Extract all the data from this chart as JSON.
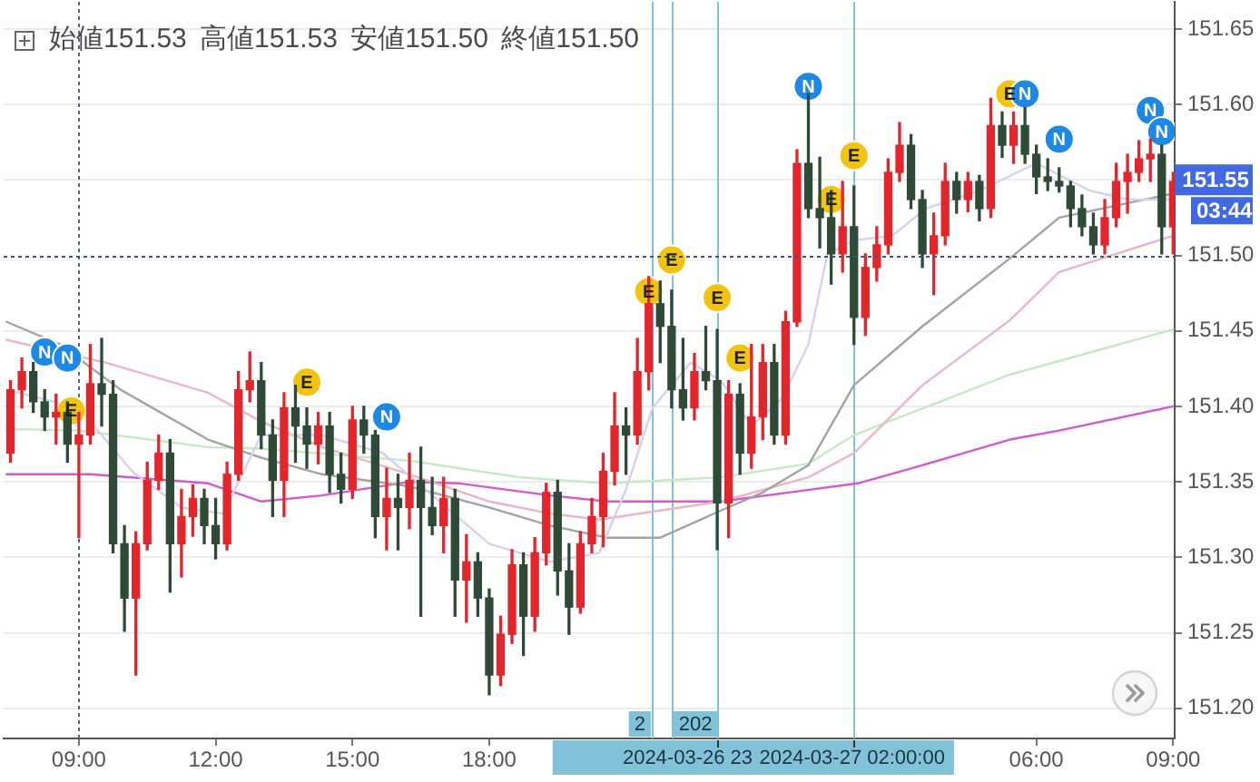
{
  "chart_data": {
    "type": "candlestick",
    "title": "始値151.53 高値151.53 安値151.50 終値151.50",
    "x": [
      "2024-03-26T07:30",
      "2024-03-26T07:45",
      "2024-03-26T08:00",
      "2024-03-26T08:15",
      "2024-03-26T08:30",
      "2024-03-26T08:45",
      "2024-03-26T09:00",
      "2024-03-26T09:15",
      "2024-03-26T09:30",
      "2024-03-26T09:45",
      "2024-03-26T10:00",
      "2024-03-26T10:15",
      "2024-03-26T10:30",
      "2024-03-26T10:45",
      "2024-03-26T11:00",
      "2024-03-26T11:15",
      "2024-03-26T11:30",
      "2024-03-26T11:45",
      "2024-03-26T12:00",
      "2024-03-26T12:15",
      "2024-03-26T12:30",
      "2024-03-26T12:45",
      "2024-03-26T13:00",
      "2024-03-26T13:15",
      "2024-03-26T13:30",
      "2024-03-26T13:45",
      "2024-03-26T14:00",
      "2024-03-26T14:15",
      "2024-03-26T14:30",
      "2024-03-26T14:45",
      "2024-03-26T15:00",
      "2024-03-26T15:15",
      "2024-03-26T15:30",
      "2024-03-26T15:45",
      "2024-03-26T16:00",
      "2024-03-26T16:15",
      "2024-03-26T16:30",
      "2024-03-26T16:45",
      "2024-03-26T17:00",
      "2024-03-26T17:15",
      "2024-03-26T17:30",
      "2024-03-26T17:45",
      "2024-03-26T18:00",
      "2024-03-26T18:15",
      "2024-03-26T18:30",
      "2024-03-26T18:45",
      "2024-03-26T19:00",
      "2024-03-26T19:15",
      "2024-03-26T19:30",
      "2024-03-26T19:45",
      "2024-03-26T20:00",
      "2024-03-26T20:15",
      "2024-03-26T20:30",
      "2024-03-26T20:45",
      "2024-03-26T21:00",
      "2024-03-26T21:15",
      "2024-03-26T21:30",
      "2024-03-26T21:45",
      "2024-03-26T22:00",
      "2024-03-26T22:15",
      "2024-03-26T22:30",
      "2024-03-26T22:45",
      "2024-03-26T23:00",
      "2024-03-26T23:15",
      "2024-03-26T23:30",
      "2024-03-26T23:45",
      "2024-03-27T00:00",
      "2024-03-27T00:15",
      "2024-03-27T00:30",
      "2024-03-27T00:45",
      "2024-03-27T01:00",
      "2024-03-27T01:15",
      "2024-03-27T01:30",
      "2024-03-27T01:45",
      "2024-03-27T02:00",
      "2024-03-27T02:15",
      "2024-03-27T02:30",
      "2024-03-27T02:45",
      "2024-03-27T03:00",
      "2024-03-27T03:15",
      "2024-03-27T03:30",
      "2024-03-27T03:45",
      "2024-03-27T04:00",
      "2024-03-27T04:15",
      "2024-03-27T04:30",
      "2024-03-27T04:45",
      "2024-03-27T05:00",
      "2024-03-27T05:15",
      "2024-03-27T05:30",
      "2024-03-27T05:45",
      "2024-03-27T06:00",
      "2024-03-27T06:15",
      "2024-03-27T06:30",
      "2024-03-27T06:45",
      "2024-03-27T07:00",
      "2024-03-27T07:15",
      "2024-03-27T07:30",
      "2024-03-27T07:45",
      "2024-03-27T08:00",
      "2024-03-27T08:15",
      "2024-03-27T08:30",
      "2024-03-27T08:45",
      "2024-03-27T09:00"
    ],
    "ohlc": [
      [
        151.369,
        151.417,
        151.363,
        151.411
      ],
      [
        151.411,
        151.432,
        151.399,
        151.423
      ],
      [
        151.423,
        151.429,
        151.396,
        151.403
      ],
      [
        151.403,
        151.411,
        151.384,
        151.393
      ],
      [
        151.393,
        151.408,
        151.375,
        151.396
      ],
      [
        151.396,
        151.403,
        151.363,
        151.375
      ],
      [
        151.375,
        151.396,
        151.313,
        151.381
      ],
      [
        151.381,
        151.441,
        151.375,
        151.415
      ],
      [
        151.415,
        151.445,
        151.387,
        151.408
      ],
      [
        151.408,
        151.417,
        151.303,
        151.309
      ],
      [
        151.309,
        151.321,
        151.251,
        151.273
      ],
      [
        151.273,
        151.317,
        151.222,
        151.309
      ],
      [
        151.309,
        151.363,
        151.305,
        151.351
      ],
      [
        151.351,
        151.381,
        151.345,
        151.369
      ],
      [
        151.369,
        151.378,
        151.277,
        151.309
      ],
      [
        151.309,
        151.345,
        151.287,
        151.327
      ],
      [
        151.327,
        151.348,
        151.314,
        151.339
      ],
      [
        151.339,
        151.345,
        151.309,
        151.321
      ],
      [
        151.321,
        151.339,
        151.299,
        151.309
      ],
      [
        151.309,
        151.363,
        151.305,
        151.355
      ],
      [
        151.355,
        151.423,
        151.351,
        151.411
      ],
      [
        151.411,
        151.436,
        151.403,
        151.417
      ],
      [
        151.417,
        151.429,
        151.372,
        151.381
      ],
      [
        151.381,
        151.391,
        151.327,
        151.351
      ],
      [
        151.351,
        151.409,
        151.327,
        151.399
      ],
      [
        151.399,
        151.414,
        151.363,
        151.387
      ],
      [
        151.387,
        151.399,
        151.359,
        151.375
      ],
      [
        151.375,
        151.396,
        151.362,
        151.387
      ],
      [
        151.387,
        151.396,
        151.343,
        151.355
      ],
      [
        151.355,
        151.369,
        151.336,
        151.345
      ],
      [
        151.345,
        151.4,
        151.339,
        151.391
      ],
      [
        151.391,
        151.4,
        151.369,
        151.381
      ],
      [
        151.381,
        151.384,
        151.313,
        151.327
      ],
      [
        151.327,
        151.359,
        151.305,
        151.339
      ],
      [
        151.339,
        151.355,
        151.305,
        151.333
      ],
      [
        151.333,
        151.369,
        151.319,
        151.351
      ],
      [
        151.351,
        151.373,
        151.261,
        151.333
      ],
      [
        151.333,
        151.353,
        151.315,
        151.321
      ],
      [
        151.321,
        151.353,
        151.303,
        151.339
      ],
      [
        151.339,
        151.345,
        151.261,
        151.285
      ],
      [
        151.285,
        151.315,
        151.257,
        151.297
      ],
      [
        151.297,
        151.303,
        151.261,
        151.273
      ],
      [
        151.273,
        151.279,
        151.209,
        151.222
      ],
      [
        151.222,
        151.261,
        151.215,
        151.249
      ],
      [
        151.249,
        151.305,
        151.243,
        151.295
      ],
      [
        151.295,
        151.303,
        151.235,
        151.261
      ],
      [
        151.261,
        151.313,
        151.251,
        151.303
      ],
      [
        151.303,
        151.349,
        151.295,
        151.343
      ],
      [
        151.343,
        151.351,
        151.275,
        151.291
      ],
      [
        151.291,
        151.309,
        151.249,
        151.267
      ],
      [
        151.267,
        151.317,
        151.263,
        151.309
      ],
      [
        151.309,
        151.339,
        151.303,
        151.327
      ],
      [
        151.327,
        151.369,
        151.307,
        151.357
      ],
      [
        151.357,
        151.409,
        151.348,
        151.387
      ],
      [
        151.387,
        151.399,
        151.355,
        151.381
      ],
      [
        151.381,
        151.445,
        151.375,
        151.423
      ],
      [
        151.423,
        151.486,
        151.411,
        151.468
      ],
      [
        151.468,
        151.483,
        151.429,
        151.453
      ],
      [
        151.453,
        151.477,
        151.399,
        151.411
      ],
      [
        151.411,
        151.445,
        151.391,
        151.399
      ],
      [
        151.399,
        151.435,
        151.391,
        151.423
      ],
      [
        151.423,
        151.453,
        151.411,
        151.417
      ],
      [
        151.417,
        151.451,
        151.305,
        151.336
      ],
      [
        151.336,
        151.417,
        151.313,
        151.408
      ],
      [
        151.408,
        151.415,
        151.355,
        151.369
      ],
      [
        151.369,
        151.441,
        151.359,
        151.393
      ],
      [
        151.393,
        151.441,
        151.378,
        151.429
      ],
      [
        151.429,
        151.441,
        151.375,
        151.381
      ],
      [
        151.381,
        151.463,
        151.375,
        151.456
      ],
      [
        151.456,
        151.57,
        151.453,
        151.561
      ],
      [
        151.561,
        151.607,
        151.525,
        151.531
      ],
      [
        151.531,
        151.565,
        151.505,
        151.525
      ],
      [
        151.525,
        151.543,
        151.481,
        151.501
      ],
      [
        151.501,
        151.549,
        151.489,
        151.519
      ],
      [
        151.519,
        151.546,
        151.441,
        151.459
      ],
      [
        151.459,
        151.501,
        151.447,
        151.492
      ],
      [
        151.492,
        151.519,
        151.483,
        151.507
      ],
      [
        151.507,
        151.564,
        151.501,
        151.555
      ],
      [
        151.555,
        151.588,
        151.549,
        151.573
      ],
      [
        151.573,
        151.58,
        151.531,
        151.537
      ],
      [
        151.537,
        151.543,
        151.492,
        151.501
      ],
      [
        151.501,
        151.528,
        151.474,
        151.513
      ],
      [
        151.513,
        151.561,
        151.507,
        151.549
      ],
      [
        151.549,
        151.555,
        151.528,
        151.537
      ],
      [
        151.537,
        151.555,
        151.529,
        151.549
      ],
      [
        151.549,
        151.553,
        151.523,
        151.531
      ],
      [
        151.531,
        151.604,
        151.525,
        151.586
      ],
      [
        151.586,
        151.595,
        151.565,
        151.573
      ],
      [
        151.573,
        151.595,
        151.561,
        151.586
      ],
      [
        151.586,
        151.598,
        151.561,
        151.567
      ],
      [
        151.567,
        151.573,
        151.541,
        151.552
      ],
      [
        151.552,
        151.564,
        151.543,
        151.549
      ],
      [
        151.549,
        151.558,
        151.542,
        151.546
      ],
      [
        151.546,
        151.549,
        151.519,
        151.531
      ],
      [
        151.531,
        151.54,
        151.513,
        151.519
      ],
      [
        151.519,
        151.528,
        151.501,
        151.507
      ],
      [
        151.507,
        151.537,
        151.501,
        151.525
      ],
      [
        151.525,
        151.561,
        151.519,
        151.549
      ],
      [
        151.549,
        151.567,
        151.528,
        151.555
      ],
      [
        151.555,
        151.576,
        151.549,
        151.564
      ],
      [
        151.564,
        151.577,
        151.549,
        151.567
      ],
      [
        151.567,
        151.573,
        151.501,
        151.519
      ],
      [
        151.519,
        151.555,
        151.501,
        151.549
      ]
    ],
    "colors": [
      "#e3262b",
      "#e3262b",
      "#2f4b38",
      "#2f4b38",
      "#e3262b",
      "#2f4b38",
      "#e3262b",
      "#e3262b",
      "#2f4b38",
      "#2f4b38",
      "#2f4b38",
      "#e3262b",
      "#e3262b",
      "#e3262b",
      "#2f4b38",
      "#e3262b",
      "#e3262b",
      "#2f4b38",
      "#2f4b38",
      "#e3262b",
      "#e3262b",
      "#e3262b",
      "#2f4b38",
      "#2f4b38",
      "#e3262b",
      "#2f4b38",
      "#2f4b38",
      "#e3262b",
      "#2f4b38",
      "#2f4b38",
      "#e3262b",
      "#2f4b38",
      "#2f4b38",
      "#e3262b",
      "#2f4b38",
      "#e3262b",
      "#2f4b38",
      "#2f4b38",
      "#e3262b",
      "#2f4b38",
      "#e3262b",
      "#2f4b38",
      "#2f4b38",
      "#e3262b",
      "#e3262b",
      "#2f4b38",
      "#e3262b",
      "#e3262b",
      "#2f4b38",
      "#2f4b38",
      "#e3262b",
      "#e3262b",
      "#e3262b",
      "#e3262b",
      "#2f4b38",
      "#e3262b",
      "#e3262b",
      "#2f4b38",
      "#2f4b38",
      "#2f4b38",
      "#e3262b",
      "#2f4b38",
      "#2f4b38",
      "#e3262b",
      "#2f4b38",
      "#e3262b",
      "#e3262b",
      "#2f4b38",
      "#e3262b",
      "#e3262b",
      "#2f4b38",
      "#2f4b38",
      "#2f4b38",
      "#e3262b",
      "#2f4b38",
      "#e3262b",
      "#e3262b",
      "#e3262b",
      "#e3262b",
      "#2f4b38",
      "#2f4b38",
      "#e3262b",
      "#e3262b",
      "#2f4b38",
      "#e3262b",
      "#2f4b38",
      "#e3262b",
      "#2f4b38",
      "#e3262b",
      "#2f4b38",
      "#2f4b38",
      "#2f4b38",
      "#2f4b38",
      "#2f4b38",
      "#2f4b38",
      "#2f4b38",
      "#e3262b",
      "#e3262b",
      "#e3262b",
      "#e3262b",
      "#e3262b",
      "#2f4b38",
      "#e3262b"
    ],
    "series": [
      {
        "type": "line",
        "color": "#d8cff2",
        "x": [
          "2024-03-26T07:25",
          "2024-03-26T09:00",
          "2024-03-26T10:10",
          "2024-03-26T11:15",
          "2024-03-26T12:10",
          "2024-03-26T13:00",
          "2024-03-26T14:20",
          "2024-03-26T15:40",
          "2024-03-26T16:50",
          "2024-03-26T18:00",
          "2024-03-26T19:20",
          "2024-03-26T20:25",
          "2024-03-26T21:00",
          "2024-03-26T21:35",
          "2024-03-26T22:25",
          "2024-03-26T23:05",
          "2024-03-26T23:45",
          "2024-03-27T00:25",
          "2024-03-27T01:00",
          "2024-03-27T01:25",
          "2024-03-27T02:00",
          "2024-03-27T02:50",
          "2024-03-27T03:35",
          "2024-03-27T04:45",
          "2024-03-27T06:00",
          "2024-03-27T07:10",
          "2024-03-27T08:00",
          "2024-03-27T09:00"
        ],
        "values": [
          151.411,
          151.399,
          151.357,
          151.333,
          151.329,
          151.381,
          151.381,
          151.369,
          151.339,
          151.309,
          151.297,
          151.303,
          151.345,
          151.399,
          151.429,
          151.417,
          151.387,
          151.405,
          151.441,
          151.501,
          151.51,
          151.513,
          151.531,
          151.543,
          151.561,
          151.543,
          151.537,
          151.537
        ]
      },
      {
        "type": "line",
        "color": "#a3a3a3",
        "x": [
          "2024-03-26T07:25",
          "2024-03-26T08:35",
          "2024-03-26T09:55",
          "2024-03-26T11:50",
          "2024-03-26T13:00",
          "2024-03-26T14:20",
          "2024-03-26T16:15",
          "2024-03-26T18:00",
          "2024-03-26T19:20",
          "2024-03-26T20:35",
          "2024-03-26T21:45",
          "2024-03-26T23:05",
          "2024-03-27T00:00",
          "2024-03-27T01:00",
          "2024-03-27T02:00",
          "2024-03-27T03:30",
          "2024-03-27T05:25",
          "2024-03-27T06:30",
          "2024-03-27T09:00"
        ],
        "values": [
          151.456,
          151.441,
          151.411,
          151.378,
          151.366,
          151.355,
          151.347,
          151.333,
          151.321,
          151.313,
          151.313,
          151.331,
          151.343,
          151.361,
          151.414,
          151.453,
          151.498,
          151.525,
          151.541
        ]
      },
      {
        "type": "line",
        "color": "#eab6c2",
        "x": [
          "2024-03-26T07:25",
          "2024-03-26T09:35",
          "2024-03-26T11:50",
          "2024-03-26T13:00",
          "2024-03-26T14:20",
          "2024-03-26T16:15",
          "2024-03-26T18:00",
          "2024-03-26T19:20",
          "2024-03-26T20:25",
          "2024-03-26T23:05",
          "2024-03-27T01:00",
          "2024-03-27T02:00",
          "2024-03-27T03:30",
          "2024-03-27T05:25",
          "2024-03-27T06:30",
          "2024-03-27T09:00"
        ],
        "values": [
          151.444,
          151.429,
          151.409,
          151.39,
          151.373,
          151.355,
          151.337,
          151.329,
          151.325,
          151.337,
          151.353,
          151.369,
          151.414,
          151.457,
          151.489,
          151.513
        ]
      },
      {
        "type": "line",
        "color": "#c3ebc3",
        "x": [
          "2024-03-26T07:25",
          "2024-03-26T09:00",
          "2024-03-26T11:50",
          "2024-03-26T13:00",
          "2024-03-26T16:15",
          "2024-03-26T18:40",
          "2024-03-26T20:35",
          "2024-03-26T23:05",
          "2024-03-27T01:00",
          "2024-03-27T02:00",
          "2024-03-27T05:25",
          "2024-03-27T09:00"
        ],
        "values": [
          151.385,
          151.384,
          151.373,
          151.372,
          151.364,
          151.353,
          151.349,
          151.353,
          151.362,
          151.381,
          151.421,
          151.451
        ]
      },
      {
        "type": "line",
        "color": "#d159d1",
        "x": [
          "2024-03-26T07:25",
          "2024-03-26T09:15",
          "2024-03-26T11:50",
          "2024-03-26T13:00",
          "2024-03-26T14:20",
          "2024-03-26T16:15",
          "2024-03-26T17:20",
          "2024-03-26T19:20",
          "2024-03-26T20:35",
          "2024-03-26T23:05",
          "2024-03-27T00:50",
          "2024-03-27T02:05",
          "2024-03-27T03:30",
          "2024-03-27T05:25",
          "2024-03-27T06:30",
          "2024-03-27T09:00"
        ],
        "values": [
          151.355,
          151.355,
          151.349,
          151.337,
          151.341,
          151.35,
          151.349,
          151.341,
          151.337,
          151.337,
          151.344,
          151.349,
          151.361,
          151.378,
          151.384,
          151.4
        ]
      },
      {
        "type": "scatter",
        "name": "E",
        "color": "#f2c40f",
        "marker": "circle",
        "x": [
          "2024-03-26T08:50",
          "2024-03-26T14:00",
          "2024-03-26T21:30",
          "2024-03-26T22:00",
          "2024-03-26T23:00",
          "2024-03-26T23:30",
          "2024-03-27T01:30",
          "2024-03-27T02:00",
          "2024-03-27T05:25"
        ],
        "values": [
          151.397,
          151.416,
          151.476,
          151.497,
          151.472,
          151.432,
          151.537,
          151.566,
          151.607
        ]
      },
      {
        "type": "scatter",
        "name": "N",
        "color": "#1e88e5",
        "marker": "circle",
        "x": [
          "2024-03-26T08:15",
          "2024-03-26T08:45",
          "2024-03-26T15:45",
          "2024-03-27T01:00",
          "2024-03-27T05:45",
          "2024-03-27T06:30",
          "2024-03-27T08:30",
          "2024-03-27T08:45"
        ],
        "values": [
          151.436,
          151.432,
          151.393,
          151.612,
          151.607,
          151.577,
          151.596,
          151.582
        ]
      }
    ],
    "xlim": [
      "2024-03-26T07:21",
      "2024-03-27T09:02"
    ],
    "xticks": [
      {
        "value": "2024-03-26T09:00",
        "label": "09:00"
      },
      {
        "value": "2024-03-26T12:00",
        "label": "12:00"
      },
      {
        "value": "2024-03-26T15:00",
        "label": "15:00"
      },
      {
        "value": "2024-03-26T18:00",
        "label": "18:00"
      },
      {
        "value": "2024-03-27T06:00",
        "label": "06:00"
      },
      {
        "value": "2024-03-27T09:00",
        "label": "09:00"
      }
    ],
    "ylim": [
      151.18,
      151.668
    ],
    "yticks": [
      {
        "value": 151.2,
        "label": "151.20"
      },
      {
        "value": 151.25,
        "label": "151.25"
      },
      {
        "value": 151.3,
        "label": "151.30"
      },
      {
        "value": 151.35,
        "label": "151.35"
      },
      {
        "value": 151.4,
        "label": "151.40"
      },
      {
        "value": 151.45,
        "label": "151.45"
      },
      {
        "value": 151.5,
        "label": "151.50"
      },
      {
        "value": 151.55,
        "label": null
      },
      {
        "value": 151.6,
        "label": "151.60"
      },
      {
        "value": 151.65,
        "label": "151.65"
      }
    ],
    "grid": "y",
    "marker": "none",
    "ref_lines": [
      {
        "axis": "x",
        "value": "2024-03-26T09:00",
        "line_style": "dotted",
        "color": "#4f6680"
      },
      {
        "axis": "y",
        "value": 151.5,
        "line_style": "dotted",
        "color": "#3f5775"
      },
      {
        "axis": "x",
        "value": "2024-03-26T21:35",
        "label": "2",
        "color": "#82c2d8"
      },
      {
        "axis": "x",
        "value": "2024-03-26T22:00",
        "label": "202",
        "color": "#82c2d8"
      },
      {
        "axis": "x",
        "value": "2024-03-26T23:00",
        "label": "2024-03-26 23",
        "color": "#82c2d8"
      },
      {
        "axis": "x",
        "value": "2024-03-27T02:00",
        "label": "2024-03-27 02:00:00",
        "color": "#82c2d8"
      }
    ],
    "annotations": [
      {
        "text": "151.55",
        "x": "2024-03-27T09:00",
        "y": 151.55
      },
      "03:44"
    ]
  }
}
